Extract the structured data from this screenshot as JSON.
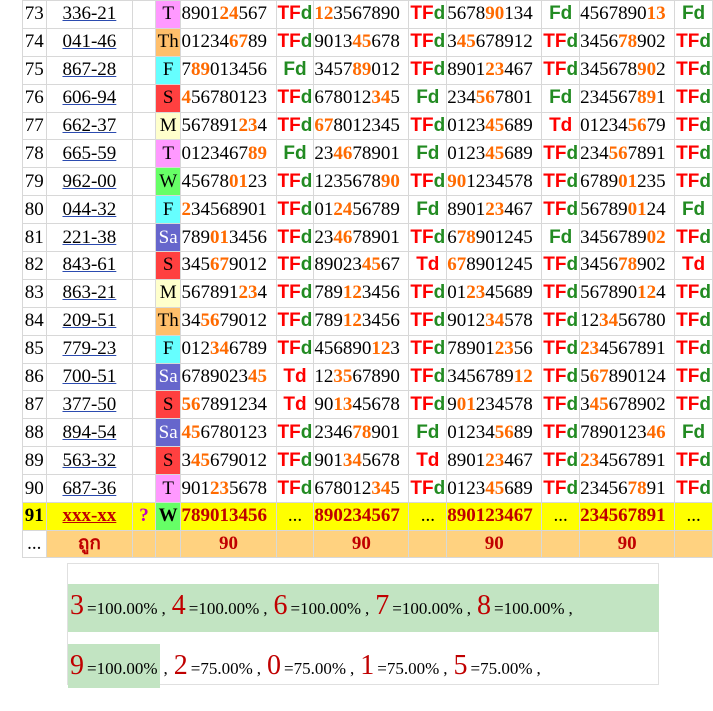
{
  "colors": {
    "T": "#ff99ff",
    "Th": "#ffbf6b",
    "F": "#66ffff",
    "S": "#ff4040",
    "M": "#ffffcc",
    "W": "#66ff66",
    "Sa": "#6666cc",
    "tf": "#ff0000",
    "fd": "#228b22",
    "highlight": "#ff6a00",
    "pred_row": "#ffff00",
    "footer_row": "#ffd280",
    "summary_green": "#c2e4c2"
  },
  "rows": [
    {
      "idx": "73",
      "code": "336-21",
      "day": "T",
      "nums": [
        "890124567",
        "123567890",
        "567890134",
        "456789013"
      ],
      "tags": [
        "TFd",
        "TFd",
        "Fd",
        "Fd"
      ]
    },
    {
      "idx": "74",
      "code": "041-46",
      "day": "Th",
      "nums": [
        "012346789",
        "901345678",
        "345678912",
        "345678902"
      ],
      "tags": [
        "TFd",
        "TFd",
        "TFd",
        "TFd"
      ]
    },
    {
      "idx": "75",
      "code": "867-28",
      "day": "F",
      "nums": [
        "789013456",
        "345789012",
        "890123467",
        "345678902"
      ],
      "tags": [
        "Fd",
        "TFd",
        "TFd",
        "TFd"
      ]
    },
    {
      "idx": "76",
      "code": "606-94",
      "day": "S",
      "nums": [
        "456780123",
        "678012345",
        "234567801",
        "234567891"
      ],
      "tags": [
        "TFd",
        "Fd",
        "Fd",
        "TFd"
      ]
    },
    {
      "idx": "77",
      "code": "662-37",
      "day": "M",
      "nums": [
        "567891234",
        "678012345",
        "012345689",
        "012345679"
      ],
      "tags": [
        "TFd",
        "TFd",
        "Td",
        "TFd"
      ]
    },
    {
      "idx": "78",
      "code": "665-59",
      "day": "T",
      "nums": [
        "012346789",
        "234678901",
        "012345689",
        "234567891"
      ],
      "tags": [
        "Fd",
        "Fd",
        "TFd",
        "TFd"
      ]
    },
    {
      "idx": "79",
      "code": "962-00",
      "day": "W",
      "nums": [
        "456780123",
        "123567890",
        "901234578",
        "678901235"
      ],
      "tags": [
        "TFd",
        "TFd",
        "TFd",
        "TFd"
      ]
    },
    {
      "idx": "80",
      "code": "044-32",
      "day": "F",
      "nums": [
        "234568901",
        "012456789",
        "890123467",
        "567890124"
      ],
      "tags": [
        "TFd",
        "Fd",
        "TFd",
        "Fd"
      ]
    },
    {
      "idx": "81",
      "code": "221-38",
      "day": "Sa",
      "nums": [
        "789013456",
        "234678901",
        "678901245",
        "345678902"
      ],
      "tags": [
        "TFd",
        "TFd",
        "Fd",
        "TFd"
      ]
    },
    {
      "idx": "82",
      "code": "843-61",
      "day": "S",
      "nums": [
        "345679012",
        "890234567",
        "678901245",
        "345678902"
      ],
      "tags": [
        "TFd",
        "Td",
        "TFd",
        "Td"
      ]
    },
    {
      "idx": "83",
      "code": "863-21",
      "day": "M",
      "nums": [
        "567891234",
        "789123456",
        "012345689",
        "567890124"
      ],
      "tags": [
        "TFd",
        "TFd",
        "TFd",
        "TFd"
      ]
    },
    {
      "idx": "84",
      "code": "209-51",
      "day": "Th",
      "nums": [
        "345679012",
        "789123456",
        "901234578",
        "123456780"
      ],
      "tags": [
        "TFd",
        "TFd",
        "TFd",
        "TFd"
      ]
    },
    {
      "idx": "85",
      "code": "779-23",
      "day": "F",
      "nums": [
        "012346789",
        "456890123",
        "789012356",
        "234567891"
      ],
      "tags": [
        "TFd",
        "TFd",
        "TFd",
        "TFd"
      ]
    },
    {
      "idx": "86",
      "code": "700-51",
      "day": "Sa",
      "nums": [
        "678902345",
        "123567890",
        "345678912",
        "567890124"
      ],
      "tags": [
        "Td",
        "TFd",
        "TFd",
        "TFd"
      ]
    },
    {
      "idx": "87",
      "code": "377-50",
      "day": "S",
      "nums": [
        "567891234",
        "901345678",
        "901234578",
        "345678902"
      ],
      "tags": [
        "Td",
        "TFd",
        "TFd",
        "TFd"
      ]
    },
    {
      "idx": "88",
      "code": "894-54",
      "day": "Sa",
      "nums": [
        "456780123",
        "234678901",
        "012345689",
        "789012346"
      ],
      "tags": [
        "TFd",
        "Fd",
        "TFd",
        "Fd"
      ]
    },
    {
      "idx": "89",
      "code": "563-32",
      "day": "S",
      "nums": [
        "345679012",
        "901345678",
        "890123467",
        "234567891"
      ],
      "tags": [
        "TFd",
        "Td",
        "TFd",
        "TFd"
      ]
    },
    {
      "idx": "90",
      "code": "687-36",
      "day": "T",
      "nums": [
        "901235678",
        "678012345",
        "012345689",
        "234567891"
      ],
      "tags": [
        "TFd",
        "TFd",
        "TFd",
        "TFd"
      ]
    }
  ],
  "pred_row": {
    "idx": "91",
    "code": "xxx-xx",
    "q": "?",
    "day": "W",
    "nums": [
      "789013456",
      "890234567",
      "890123467",
      "234567891"
    ],
    "dots": "..."
  },
  "footer_row": {
    "lead": "...",
    "label": "ถูก",
    "counts": [
      "90",
      "90",
      "90",
      "90"
    ]
  },
  "summary": {
    "row1": [
      {
        "digit": "3",
        "pct": "=100.00%"
      },
      {
        "digit": "4",
        "pct": "=100.00%"
      },
      {
        "digit": "6",
        "pct": "=100.00%"
      },
      {
        "digit": "7",
        "pct": "=100.00%"
      },
      {
        "digit": "8",
        "pct": "=100.00%"
      }
    ],
    "row2": [
      {
        "digit": "9",
        "pct": "=100.00%"
      },
      {
        "digit": "2",
        "pct": "=75.00%"
      },
      {
        "digit": "0",
        "pct": "=75.00%"
      },
      {
        "digit": "1",
        "pct": "=75.00%"
      },
      {
        "digit": "5",
        "pct": "=75.00%"
      }
    ],
    "separator": ","
  }
}
